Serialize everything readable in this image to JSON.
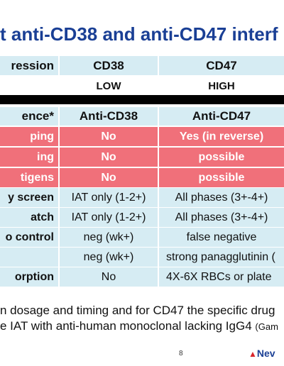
{
  "title": "t anti-CD38 and anti-CD47 interf",
  "table": {
    "expression_row": {
      "label": "ression",
      "c1": "CD38",
      "c2": "CD47"
    },
    "level_row": {
      "label": "",
      "c1": "LOW",
      "c2": "HIGH"
    },
    "header_row": {
      "label": "ence*",
      "c1": "Anti-CD38",
      "c2": "Anti-CD47"
    },
    "rows": [
      {
        "label": "ping",
        "c1": "No",
        "c2": "Yes (in reverse)"
      },
      {
        "label": "ing",
        "c1": "No",
        "c2": "possible"
      },
      {
        "label": "tigens",
        "c1": "No",
        "c2": "possible"
      },
      {
        "label": "y screen",
        "c1": "IAT only (1-2+)",
        "c2": "All phases (3+-4+)"
      },
      {
        "label": "atch",
        "c1": "IAT only (1-2+)",
        "c2": "All phases (3+-4+)"
      },
      {
        "label": "o control",
        "c1": "neg (wk+)",
        "c2": "false negative"
      },
      {
        "label": "",
        "c1": "neg (wk+)",
        "c2": "strong panagglutinin ("
      },
      {
        "label": "orption",
        "c1": "No",
        "c2": "4X-6X RBCs or plate"
      }
    ]
  },
  "bullets": {
    "line1": "n dosage and timing and for CD47 the specific drug",
    "line2": "e IAT with anti-human monoclonal lacking IgG4",
    "line2_small": "(Gam"
  },
  "footer": {
    "page": "8",
    "logo_text": "Nev",
    "logo_symbol": "▲"
  },
  "colors": {
    "title": "#1a3f95",
    "light_blue": "#d6ecf3",
    "pink": "#f0707a",
    "black_bar": "#000000"
  }
}
